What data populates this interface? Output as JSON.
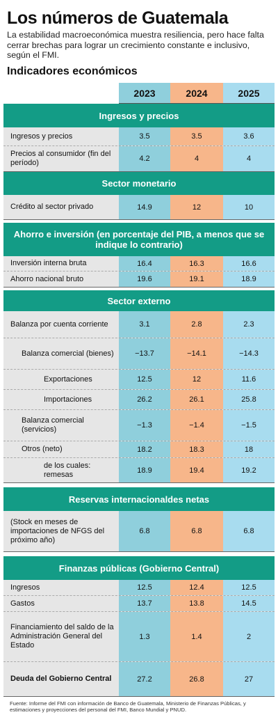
{
  "title": "Los números de Guatemala",
  "subtitle": "La estabilidad macroeconómica muestra resiliencia, pero hace falta cerrar brechas para lograr un crecimiento constante e inclusivo, según el FMI.",
  "section_heading": "Indicadores económicos",
  "years": [
    "2023",
    "2024",
    "2025"
  ],
  "sections": [
    {
      "title": "Ingresos y precios",
      "rows": [
        {
          "label": "Ingresos y precios",
          "values": [
            "3.5",
            "3.5",
            "3.6"
          ]
        },
        {
          "label": "Precios al consumidor (fin del período)",
          "values": [
            "4.2",
            "4",
            "4"
          ]
        }
      ]
    },
    {
      "title": "Sector monetario",
      "rows": [
        {
          "label": "Crédito al sector privado",
          "values": [
            "14.9",
            "12",
            "10"
          ]
        }
      ]
    },
    {
      "title": "Ahorro e inversión (en porcentaje del PIB, a menos que se indique lo contrario)",
      "rows": [
        {
          "label": "Inversión interna bruta",
          "values": [
            "16.4",
            "16.3",
            "16.6"
          ]
        },
        {
          "label": "Ahorro nacional bruto",
          "values": [
            "19.6",
            "19.1",
            "18.9"
          ]
        }
      ]
    },
    {
      "title": "Sector externo",
      "rows": [
        {
          "label": "Balanza por cuenta corriente",
          "values": [
            "3.1",
            "2.8",
            "2.3"
          ]
        },
        {
          "label": "Balanza comercial (bienes)",
          "values": [
            "−13.7",
            "−14.1",
            "−14.3"
          ]
        },
        {
          "label": "Exportaciones",
          "values": [
            "12.5",
            "12",
            "11.6"
          ]
        },
        {
          "label": "Importaciones",
          "values": [
            "26.2",
            "26.1",
            "25.8"
          ]
        },
        {
          "label": "Balanza comercial (servicios)",
          "values": [
            "−1.3",
            "−1.4",
            "−1.5"
          ]
        },
        {
          "label": "Otros (neto)",
          "values": [
            "18.2",
            "18.3",
            "18"
          ]
        },
        {
          "label": "de los cuales: remesas",
          "values": [
            "18.9",
            "19.4",
            "19.2"
          ]
        }
      ]
    },
    {
      "title": "Reservas internacionaldes netas",
      "rows": [
        {
          "label": "(Stock en meses de importaciones de NFGS del próximo año)",
          "values": [
            "6.8",
            "6.8",
            "6.8"
          ]
        }
      ]
    },
    {
      "title": "Finanzas públicas (Gobierno Central)",
      "rows": [
        {
          "label": "Ingresos",
          "values": [
            "12.5",
            "12.4",
            "12.5"
          ]
        },
        {
          "label": "Gastos",
          "values": [
            "13.7",
            "13.8",
            "14.5"
          ]
        },
        {
          "label": "Financiamiento del saldo de la Administración General del Estado",
          "values": [
            "1.3",
            "1.4",
            "2"
          ]
        },
        {
          "label": "Deuda del Gobierno Central",
          "values": [
            "27.2",
            "26.8",
            "27"
          ]
        }
      ]
    }
  ],
  "footer": "Fuente: Informe del FMI con información de Banco de Guatemala, Ministerio de Finanzas Públicas, y estimaciones y proyecciones del personal del FMI, Banco Mundial y PNUD."
}
